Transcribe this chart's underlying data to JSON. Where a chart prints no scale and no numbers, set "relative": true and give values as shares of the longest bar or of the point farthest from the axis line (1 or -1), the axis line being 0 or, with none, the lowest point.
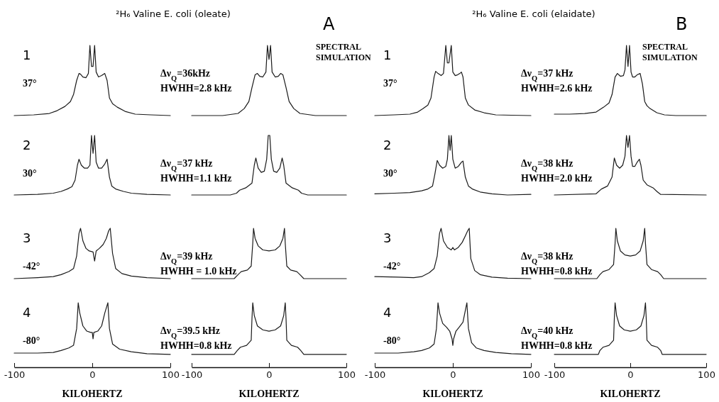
{
  "chart_data": [
    {
      "type": "line",
      "title": "²H₆ Valine E. coli (oleate)",
      "relative": true,
      "color": "#1a1a1a",
      "xlim": [
        -100,
        100
      ],
      "tick_labels": false,
      "annotations": [
        "1",
        "37°",
        "Δν$_{Q}$=36kHz",
        "HWHH=2.8 kHz"
      ],
      "x": [
        -100,
        -75,
        -55,
        -45,
        -35,
        -28,
        -24,
        -20,
        -17,
        -15,
        -12,
        -8,
        -5,
        -3,
        -1,
        1,
        3,
        5,
        8,
        12,
        16,
        19,
        22,
        26,
        32,
        42,
        55,
        75,
        100
      ],
      "values": [
        0,
        0.01,
        0.03,
        0.07,
        0.13,
        0.2,
        0.3,
        0.5,
        0.6,
        0.59,
        0.55,
        0.54,
        0.6,
        1,
        0.7,
        0.7,
        1,
        0.62,
        0.55,
        0.57,
        0.6,
        0.5,
        0.25,
        0.17,
        0.12,
        0.06,
        0.02,
        0.01,
        0
      ]
    },
    {
      "type": "line",
      "title": "SPECTRAL SIMULATION",
      "relative": true,
      "color": "#1a1a1a",
      "xlim": [
        -100,
        100
      ],
      "tick_labels": false,
      "annotations": [
        "A"
      ],
      "x": [
        -100,
        -60,
        -40,
        -32,
        -26,
        -22,
        -18,
        -15,
        -12,
        -8,
        -4,
        -2,
        0,
        2,
        4,
        8,
        12,
        15,
        18,
        22,
        26,
        32,
        40,
        60,
        100
      ],
      "values": [
        0,
        0,
        0.03,
        0.1,
        0.2,
        0.4,
        0.58,
        0.6,
        0.56,
        0.55,
        0.62,
        1,
        0.8,
        1,
        0.62,
        0.55,
        0.56,
        0.6,
        0.58,
        0.4,
        0.2,
        0.1,
        0.03,
        0,
        0
      ]
    },
    {
      "type": "line",
      "title": "²H₆ Valine E. coli (elaidate)",
      "relative": true,
      "color": "#1a1a1a",
      "xlim": [
        -100,
        100
      ],
      "tick_labels": false,
      "annotations": [
        "1",
        "37°",
        "Δν$_{Q}$=37 kHz",
        "HWHH=2.6 kHz"
      ],
      "x": [
        -100,
        -75,
        -55,
        -45,
        -38,
        -32,
        -28,
        -24,
        -22,
        -19,
        -15,
        -12,
        -9,
        -7,
        -5,
        -2,
        0,
        3,
        6,
        9,
        11,
        13,
        16,
        20,
        28,
        40,
        55,
        75,
        100
      ],
      "values": [
        0,
        0.01,
        0.02,
        0.05,
        0.1,
        0.15,
        0.25,
        0.55,
        0.63,
        0.6,
        0.57,
        0.6,
        1,
        0.75,
        0.75,
        1,
        0.62,
        0.57,
        0.58,
        0.6,
        0.62,
        0.55,
        0.25,
        0.15,
        0.08,
        0.04,
        0.01,
        0.005,
        0
      ]
    },
    {
      "type": "line",
      "title": "SPECTRAL SIMULATION",
      "relative": true,
      "color": "#1a1a1a",
      "xlim": [
        -100,
        100
      ],
      "tick_labels": false,
      "annotations": [
        "B"
      ],
      "x": [
        -100,
        -80,
        -60,
        -45,
        -35,
        -28,
        -24,
        -20,
        -17,
        -13,
        -9,
        -7,
        -5,
        -3,
        -1,
        1,
        3,
        6,
        9,
        13,
        16,
        19,
        22,
        26,
        35,
        45,
        60,
        80,
        100
      ],
      "values": [
        0.02,
        0.02,
        0.03,
        0.05,
        0.12,
        0.18,
        0.3,
        0.55,
        0.6,
        0.56,
        0.57,
        0.65,
        1,
        0.7,
        1,
        0.62,
        0.55,
        0.55,
        0.58,
        0.6,
        0.45,
        0.2,
        0.14,
        0.1,
        0.04,
        0.01,
        0,
        0,
        0
      ]
    },
    {
      "type": "line",
      "relative": true,
      "color": "#1a1a1a",
      "xlim": [
        -100,
        100
      ],
      "tick_labels": false,
      "annotations": [
        "2",
        "30°",
        "Δν$_{Q}$=37 kHz",
        "HWHH=1.1 kHz"
      ],
      "x": [
        -100,
        -70,
        -50,
        -40,
        -32,
        -26,
        -22,
        -19,
        -17,
        -14,
        -10,
        -6,
        -3,
        -1,
        1,
        3,
        5,
        8,
        12,
        16,
        19,
        22,
        25,
        30,
        40,
        50,
        70,
        100
      ],
      "values": [
        0,
        0.01,
        0.03,
        0.06,
        0.1,
        0.14,
        0.25,
        0.5,
        0.6,
        0.5,
        0.45,
        0.45,
        0.5,
        1,
        0.7,
        1,
        0.55,
        0.45,
        0.45,
        0.52,
        0.6,
        0.3,
        0.15,
        0.1,
        0.06,
        0.03,
        0.01,
        0
      ]
    },
    {
      "type": "line",
      "relative": true,
      "color": "#1a1a1a",
      "xlim": [
        -100,
        100
      ],
      "tick_labels": false,
      "x": [
        -100,
        -50,
        -42,
        -38,
        -30,
        -22,
        -19,
        -17,
        -14,
        -10,
        -6,
        -3,
        -1,
        1,
        3,
        6,
        10,
        14,
        17,
        19,
        22,
        30,
        38,
        42,
        50,
        100
      ],
      "values": [
        0,
        0,
        0.03,
        0.08,
        0.12,
        0.2,
        0.5,
        0.62,
        0.45,
        0.38,
        0.4,
        0.6,
        1,
        1,
        0.6,
        0.4,
        0.38,
        0.45,
        0.62,
        0.5,
        0.2,
        0.12,
        0.08,
        0.03,
        0,
        0
      ]
    },
    {
      "type": "line",
      "relative": true,
      "color": "#1a1a1a",
      "xlim": [
        -100,
        100
      ],
      "tick_labels": false,
      "annotations": [
        "2",
        "30°",
        "Δν$_{Q}$=38 kHz",
        "HWHH=2.0 kHz"
      ],
      "x": [
        -100,
        -75,
        -55,
        -40,
        -32,
        -26,
        -23,
        -20,
        -17,
        -13,
        -9,
        -7,
        -5,
        -3.5,
        -2,
        0,
        3,
        7,
        11,
        13,
        16,
        20,
        25,
        35,
        50,
        70,
        100
      ],
      "values": [
        0.02,
        0.03,
        0.04,
        0.07,
        0.1,
        0.15,
        0.35,
        0.58,
        0.5,
        0.45,
        0.48,
        0.6,
        1,
        0.75,
        1,
        0.6,
        0.45,
        0.48,
        0.55,
        0.57,
        0.3,
        0.15,
        0.1,
        0.05,
        0.02,
        0,
        0.01
      ]
    },
    {
      "type": "line",
      "relative": true,
      "color": "#1a1a1a",
      "xlim": [
        -100,
        100
      ],
      "tick_labels": false,
      "x": [
        -100,
        -45,
        -38,
        -30,
        -24,
        -21,
        -18,
        -14,
        -10,
        -7,
        -5,
        -3,
        -1,
        1,
        3,
        6,
        9,
        12,
        14,
        17,
        22,
        30,
        35,
        40,
        100
      ],
      "values": [
        0,
        0.02,
        0.1,
        0.15,
        0.3,
        0.62,
        0.5,
        0.45,
        0.5,
        0.65,
        1,
        0.8,
        1,
        0.65,
        0.48,
        0.48,
        0.55,
        0.6,
        0.5,
        0.25,
        0.17,
        0.12,
        0.06,
        0.01,
        0
      ]
    },
    {
      "type": "line",
      "relative": true,
      "color": "#1a1a1a",
      "xlim": [
        -100,
        100
      ],
      "tick_labels": false,
      "annotations": [
        "3",
        "-42°",
        "Δν$_{Q}$=39 kHz",
        "HWHH = 1.0 kHz"
      ],
      "x": [
        -100,
        -70,
        -50,
        -40,
        -30,
        -24,
        -20,
        -17,
        -15,
        -12,
        -8,
        -4,
        1,
        3,
        5,
        9,
        14,
        18,
        21,
        23,
        26,
        30,
        38,
        50,
        70,
        100
      ],
      "values": [
        0,
        0.02,
        0.04,
        0.08,
        0.14,
        0.2,
        0.45,
        0.9,
        1,
        0.75,
        0.6,
        0.55,
        0.53,
        0.35,
        0.55,
        0.6,
        0.68,
        0.8,
        0.95,
        1,
        0.5,
        0.2,
        0.1,
        0.05,
        0.02,
        0
      ]
    },
    {
      "type": "line",
      "relative": true,
      "color": "#1a1a1a",
      "xlim": [
        -100,
        100
      ],
      "tick_labels": false,
      "x": [
        -100,
        -45,
        -40,
        -36,
        -28,
        -23,
        -21,
        -20,
        -18,
        -14,
        -8,
        0,
        8,
        14,
        18,
        20,
        21,
        23,
        28,
        36,
        40,
        45,
        100
      ],
      "values": [
        0,
        0,
        0.08,
        0.14,
        0.17,
        0.25,
        0.7,
        1,
        0.8,
        0.65,
        0.57,
        0.55,
        0.57,
        0.65,
        0.8,
        1,
        0.7,
        0.25,
        0.17,
        0.14,
        0.08,
        0,
        0
      ]
    },
    {
      "type": "line",
      "relative": true,
      "color": "#1a1a1a",
      "xlim": [
        -100,
        100
      ],
      "tick_labels": false,
      "annotations": [
        "3",
        "-42°",
        "Δν$_{Q}$=38 kHz",
        "HWHH=0.8 kHz"
      ],
      "x": [
        -100,
        -70,
        -50,
        -40,
        -30,
        -24,
        -20,
        -17,
        -15,
        -12,
        -7,
        -2,
        0,
        2,
        7,
        12,
        16,
        19,
        21,
        23,
        28,
        35,
        50,
        70,
        100
      ],
      "values": [
        0.04,
        0.03,
        0.02,
        0.04,
        0.12,
        0.2,
        0.45,
        0.9,
        1,
        0.75,
        0.62,
        0.57,
        0.62,
        0.57,
        0.62,
        0.72,
        0.85,
        0.95,
        1,
        0.4,
        0.16,
        0.08,
        0.03,
        0.01,
        0
      ]
    },
    {
      "type": "line",
      "relative": true,
      "color": "#1a1a1a",
      "xlim": [
        -100,
        100
      ],
      "tick_labels": false,
      "x": [
        -100,
        -44,
        -40,
        -36,
        -28,
        -22,
        -20,
        -19,
        -17,
        -13,
        -7,
        0,
        7,
        13,
        17,
        19,
        20,
        22,
        28,
        36,
        40,
        44,
        100
      ],
      "values": [
        0,
        0,
        0.08,
        0.14,
        0.18,
        0.28,
        0.7,
        1,
        0.75,
        0.55,
        0.47,
        0.45,
        0.47,
        0.55,
        0.75,
        1,
        0.7,
        0.28,
        0.18,
        0.14,
        0.08,
        0,
        0
      ]
    },
    {
      "type": "line",
      "relative": true,
      "color": "#1a1a1a",
      "xlim": [
        -100,
        100
      ],
      "xticks": [
        -100,
        0,
        100
      ],
      "xlabel": "KILOHERTZ",
      "annotations": [
        "4",
        "-80°",
        "Δν$_{Q}$=39.5 kHz",
        "HWHH=0.8 kHz"
      ],
      "x": [
        -100,
        -70,
        -50,
        -40,
        -30,
        -24,
        -20,
        -18,
        -16,
        -12,
        -7,
        -2,
        0,
        1,
        2,
        7,
        12,
        16,
        19,
        20,
        22,
        26,
        35,
        50,
        70,
        100
      ],
      "values": [
        0.22,
        0.22,
        0.23,
        0.26,
        0.3,
        0.34,
        0.6,
        1,
        0.84,
        0.64,
        0.56,
        0.54,
        0.54,
        0.44,
        0.54,
        0.56,
        0.64,
        0.84,
        0.96,
        1,
        0.6,
        0.36,
        0.28,
        0.24,
        0.21,
        0.2
      ]
    },
    {
      "type": "line",
      "relative": true,
      "color": "#1a1a1a",
      "xlim": [
        -100,
        100
      ],
      "xticks": [
        -100,
        0,
        100
      ],
      "xlabel": "KILOHERTZ",
      "x": [
        -100,
        -45,
        -41,
        -37,
        -29,
        -23,
        -22,
        -21,
        -19,
        -15,
        -8,
        0,
        8,
        15,
        19,
        21,
        22,
        23,
        29,
        37,
        41,
        45,
        100
      ],
      "values": [
        0.2,
        0.2,
        0.26,
        0.31,
        0.34,
        0.42,
        0.76,
        1,
        0.8,
        0.64,
        0.58,
        0.56,
        0.58,
        0.64,
        0.8,
        1,
        0.76,
        0.42,
        0.34,
        0.31,
        0.26,
        0.2,
        0.2
      ]
    },
    {
      "type": "line",
      "relative": true,
      "color": "#1a1a1a",
      "xlim": [
        -100,
        100
      ],
      "xticks": [
        -100,
        0,
        100
      ],
      "xlabel": "KILOHERTZ",
      "annotations": [
        "4",
        "-80°",
        "Δν$_{Q}$=40 kHz",
        "HWHH=0.8 kHz"
      ],
      "x": [
        -100,
        -70,
        -50,
        -40,
        -30,
        -24,
        -21,
        -19,
        -17,
        -13,
        -8,
        -4,
        -1,
        0,
        1,
        4,
        8,
        13,
        16,
        18,
        20,
        24,
        30,
        40,
        55,
        75,
        100
      ],
      "values": [
        0.22,
        0.22,
        0.24,
        0.26,
        0.3,
        0.36,
        0.6,
        1,
        0.84,
        0.68,
        0.62,
        0.56,
        0.44,
        0.34,
        0.44,
        0.56,
        0.62,
        0.7,
        0.88,
        1,
        0.6,
        0.38,
        0.3,
        0.26,
        0.23,
        0.21,
        0.2
      ]
    },
    {
      "type": "line",
      "relative": true,
      "color": "#1a1a1a",
      "xlim": [
        -100,
        100
      ],
      "xticks": [
        -100,
        0,
        100
      ],
      "xlabel": "KILOHERTZ",
      "x": [
        -100,
        -42,
        -40,
        -36,
        -28,
        -22,
        -21,
        -20,
        -18,
        -14,
        -8,
        0,
        8,
        14,
        18,
        20,
        21,
        22,
        28,
        36,
        40,
        42,
        100
      ],
      "values": [
        0.2,
        0.2,
        0.26,
        0.31,
        0.34,
        0.42,
        0.76,
        1,
        0.8,
        0.64,
        0.58,
        0.56,
        0.58,
        0.64,
        0.8,
        1,
        0.76,
        0.42,
        0.34,
        0.31,
        0.26,
        0.2,
        0.2
      ]
    }
  ]
}
